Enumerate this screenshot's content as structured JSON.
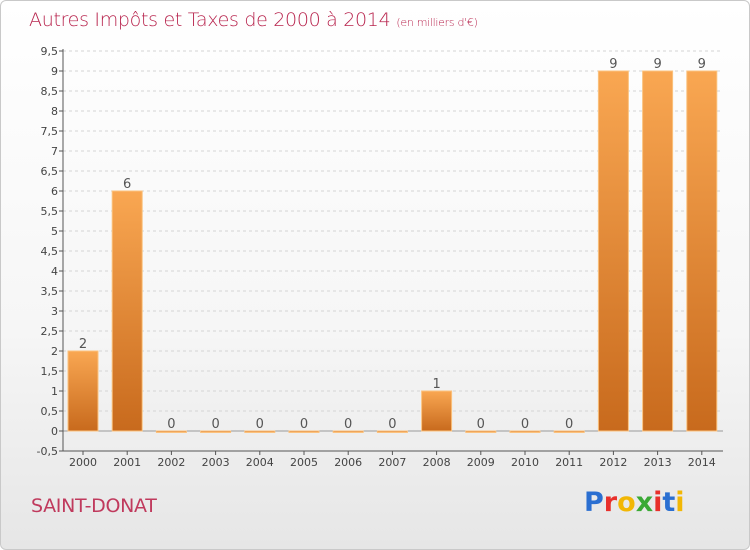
{
  "header": {
    "title": "Autres Impôts et Taxes de 2000 à 2014",
    "unit": "(en milliers d'€)"
  },
  "footer": {
    "commune": "SAINT-DONAT",
    "logo_text": "Proxiti",
    "logo_colors": [
      "#2b6fd1",
      "#e8302b",
      "#f2b705",
      "#3aa935",
      "#e8302b",
      "#2b6fd1",
      "#f2b705"
    ]
  },
  "colors": {
    "title": "#b8254e",
    "commune": "#c03a5d",
    "bar_top": "#f9a752",
    "bar_bottom": "#c86a1d",
    "bar_edge": "#fbc27e",
    "grid": "#d4d4d4",
    "axis": "#555555"
  },
  "chart_data": {
    "type": "bar",
    "title": "Autres Impôts et Taxes de 2000 à 2014",
    "subtitle": "(en milliers d'€)",
    "categories": [
      "2000",
      "2001",
      "2002",
      "2003",
      "2004",
      "2005",
      "2006",
      "2007",
      "2008",
      "2009",
      "2010",
      "2011",
      "2012",
      "2013",
      "2014"
    ],
    "values": [
      2,
      6,
      0,
      0,
      0,
      0,
      0,
      0,
      1,
      0,
      0,
      0,
      9,
      9,
      9
    ],
    "data_labels": [
      "2",
      "6",
      "0",
      "0",
      "0",
      "0",
      "0",
      "0",
      "1",
      "0",
      "0",
      "0",
      "9",
      "9",
      "9"
    ],
    "ylim": [
      -0.5,
      9.5
    ],
    "yticks": [
      "-0,5",
      "0",
      "0,5",
      "1",
      "1,5",
      "2",
      "2,5",
      "3",
      "3,5",
      "4",
      "4,5",
      "5",
      "5,5",
      "6",
      "6,5",
      "7",
      "7,5",
      "8",
      "8,5",
      "9",
      "9,5"
    ],
    "ytick_values": [
      -0.5,
      0,
      0.5,
      1,
      1.5,
      2,
      2.5,
      3,
      3.5,
      4,
      4.5,
      5,
      5.5,
      6,
      6.5,
      7,
      7.5,
      8,
      8.5,
      9,
      9.5
    ],
    "grid": "horizontal dashed",
    "legend": "none"
  }
}
